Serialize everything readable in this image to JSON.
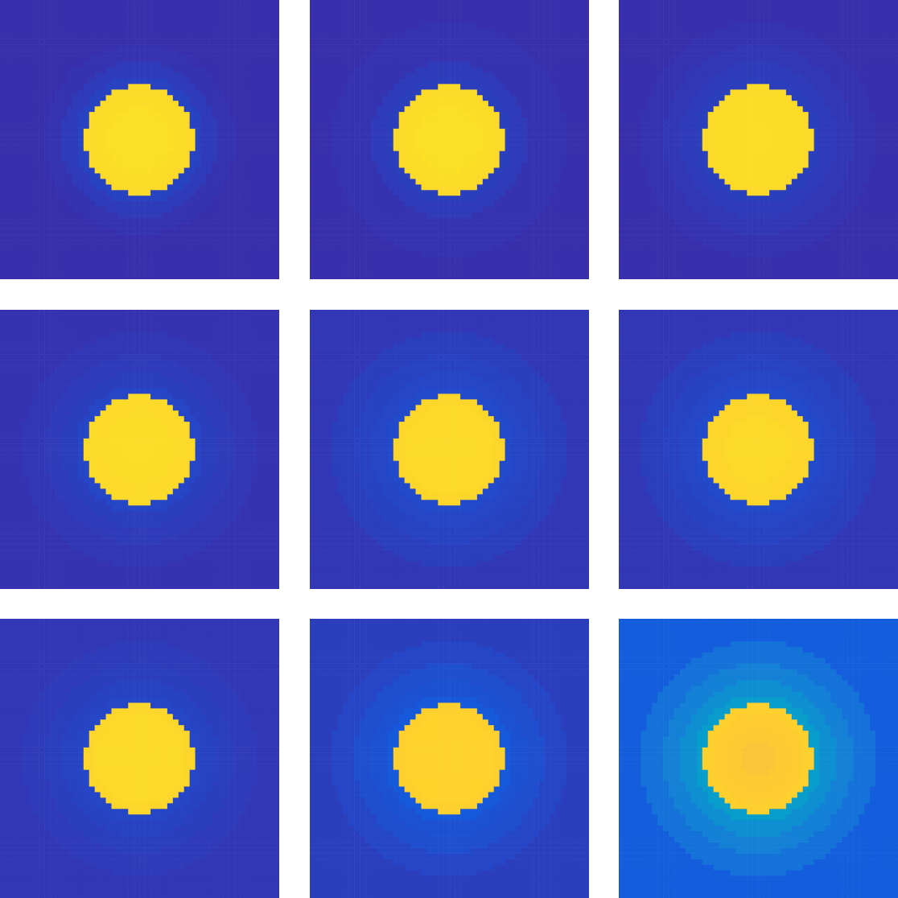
{
  "chart_data": [
    {
      "type": "heatmap",
      "tick_labels": false,
      "xlim": [
        0,
        1
      ],
      "ylim": [
        0,
        1
      ],
      "radii": [
        0,
        0.06,
        0.12,
        0.17,
        0.195,
        0.23,
        0.28,
        0.34,
        0.42,
        0.72
      ],
      "values": [
        0.95,
        0.95,
        0.94,
        0.93,
        0.06,
        0.04,
        0.02,
        0.01,
        0.01
      ]
    },
    {
      "type": "heatmap",
      "tick_labels": false,
      "xlim": [
        0,
        1
      ],
      "ylim": [
        0,
        1
      ],
      "radii": [
        0,
        0.06,
        0.12,
        0.17,
        0.195,
        0.23,
        0.28,
        0.34,
        0.42,
        0.72
      ],
      "values": [
        0.95,
        0.95,
        0.94,
        0.93,
        0.05,
        0.04,
        0.02,
        0.02,
        0.01
      ]
    },
    {
      "type": "heatmap",
      "tick_labels": false,
      "xlim": [
        0,
        1
      ],
      "ylim": [
        0,
        1
      ],
      "radii": [
        0,
        0.06,
        0.12,
        0.17,
        0.195,
        0.23,
        0.28,
        0.34,
        0.42,
        0.72
      ],
      "values": [
        0.94,
        0.94,
        0.94,
        0.93,
        0.05,
        0.04,
        0.03,
        0.02,
        0.01
      ]
    },
    {
      "type": "heatmap",
      "tick_labels": false,
      "xlim": [
        0,
        1
      ],
      "ylim": [
        0,
        1
      ],
      "radii": [
        0,
        0.06,
        0.12,
        0.17,
        0.195,
        0.23,
        0.28,
        0.34,
        0.42,
        0.72
      ],
      "values": [
        0.94,
        0.94,
        0.93,
        0.93,
        0.07,
        0.05,
        0.04,
        0.03,
        0.02
      ]
    },
    {
      "type": "heatmap",
      "tick_labels": false,
      "xlim": [
        0,
        1
      ],
      "ylim": [
        0,
        1
      ],
      "radii": [
        0,
        0.06,
        0.12,
        0.17,
        0.195,
        0.23,
        0.28,
        0.34,
        0.42,
        0.72
      ],
      "values": [
        0.93,
        0.93,
        0.93,
        0.92,
        0.08,
        0.07,
        0.06,
        0.05,
        0.03
      ]
    },
    {
      "type": "heatmap",
      "tick_labels": false,
      "xlim": [
        0,
        1
      ],
      "ylim": [
        0,
        1
      ],
      "radii": [
        0,
        0.06,
        0.12,
        0.17,
        0.195,
        0.23,
        0.28,
        0.34,
        0.42,
        0.72
      ],
      "values": [
        0.93,
        0.93,
        0.92,
        0.92,
        0.08,
        0.07,
        0.06,
        0.05,
        0.03
      ]
    },
    {
      "type": "heatmap",
      "tick_labels": false,
      "xlim": [
        0,
        1
      ],
      "ylim": [
        0,
        1
      ],
      "radii": [
        0,
        0.06,
        0.12,
        0.17,
        0.195,
        0.23,
        0.28,
        0.34,
        0.42,
        0.72
      ],
      "values": [
        0.93,
        0.93,
        0.93,
        0.92,
        0.07,
        0.06,
        0.05,
        0.04,
        0.03
      ]
    },
    {
      "type": "heatmap",
      "tick_labels": false,
      "xlim": [
        0,
        1
      ],
      "ylim": [
        0,
        1
      ],
      "radii": [
        0,
        0.06,
        0.12,
        0.17,
        0.195,
        0.23,
        0.28,
        0.34,
        0.42,
        0.72
      ],
      "values": [
        0.91,
        0.91,
        0.91,
        0.9,
        0.12,
        0.1,
        0.09,
        0.07,
        0.05
      ]
    },
    {
      "type": "heatmap",
      "tick_labels": false,
      "xlim": [
        0,
        1
      ],
      "ylim": [
        0,
        1
      ],
      "radii": [
        0,
        0.06,
        0.12,
        0.17,
        0.195,
        0.23,
        0.28,
        0.34,
        0.42,
        0.72
      ],
      "values": [
        0.86,
        0.88,
        0.89,
        0.9,
        0.35,
        0.3,
        0.25,
        0.2,
        0.13
      ]
    }
  ]
}
